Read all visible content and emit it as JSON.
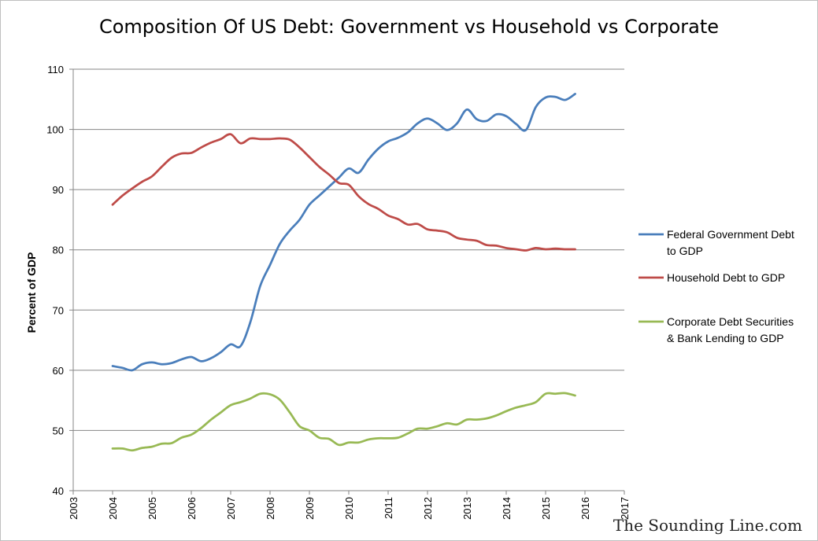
{
  "colors": {
    "federal": "#4a7ebb",
    "household": "#be4b48",
    "corporate": "#98b954",
    "grid": "#868686"
  },
  "watermark": "The Sounding Line.com",
  "chart_data": {
    "type": "line",
    "title": "Composition Of US Debt: Government vs Household vs Corporate",
    "xlabel": "",
    "ylabel": "Percent of GDP",
    "xlim": [
      2003,
      2017
    ],
    "ylim": [
      40,
      110
    ],
    "x_ticks": [
      "2003",
      "2004",
      "2005",
      "2006",
      "2007",
      "2008",
      "2009",
      "2010",
      "2011",
      "2012",
      "2013",
      "2014",
      "2015",
      "2016",
      "2017"
    ],
    "y_ticks": [
      "40",
      "50",
      "60",
      "70",
      "80",
      "90",
      "100",
      "110"
    ],
    "grid": "horizontal",
    "legend_position": "right",
    "series": [
      {
        "name": "Federal Government Debt to GDP",
        "legend_lines": [
          "Federal Government Debt",
          "to GDP"
        ],
        "color": "#4a7ebb",
        "x": [
          2004.0,
          2004.25,
          2004.5,
          2004.75,
          2005.0,
          2005.25,
          2005.5,
          2005.75,
          2006.0,
          2006.25,
          2006.5,
          2006.75,
          2007.0,
          2007.25,
          2007.5,
          2007.75,
          2008.0,
          2008.25,
          2008.5,
          2008.75,
          2009.0,
          2009.25,
          2009.5,
          2009.75,
          2010.0,
          2010.25,
          2010.5,
          2010.75,
          2011.0,
          2011.25,
          2011.5,
          2011.75,
          2012.0,
          2012.25,
          2012.5,
          2012.75,
          2013.0,
          2013.25,
          2013.5,
          2013.75,
          2014.0,
          2014.25,
          2014.5,
          2014.75,
          2015.0,
          2015.25,
          2015.5,
          2015.75
        ],
        "y": [
          60.7,
          60.4,
          60.0,
          61.0,
          61.3,
          61.0,
          61.2,
          61.8,
          62.2,
          61.5,
          62.0,
          63.0,
          64.3,
          64.0,
          68.0,
          74.0,
          77.5,
          81.0,
          83.2,
          85.0,
          87.5,
          89.0,
          90.5,
          92.0,
          93.5,
          92.8,
          95.0,
          96.8,
          98.0,
          98.6,
          99.5,
          101.0,
          101.8,
          101.0,
          99.9,
          101.0,
          103.3,
          101.7,
          101.4,
          102.5,
          102.2,
          100.9,
          99.9,
          103.7,
          105.3,
          105.4,
          104.9,
          105.9
        ]
      },
      {
        "name": "Household Debt to GDP",
        "legend_lines": [
          "Household Debt to GDP"
        ],
        "color": "#be4b48",
        "x": [
          2004.0,
          2004.25,
          2004.5,
          2004.75,
          2005.0,
          2005.25,
          2005.5,
          2005.75,
          2006.0,
          2006.25,
          2006.5,
          2006.75,
          2007.0,
          2007.25,
          2007.5,
          2007.75,
          2008.0,
          2008.25,
          2008.5,
          2008.75,
          2009.0,
          2009.25,
          2009.5,
          2009.75,
          2010.0,
          2010.25,
          2010.5,
          2010.75,
          2011.0,
          2011.25,
          2011.5,
          2011.75,
          2012.0,
          2012.25,
          2012.5,
          2012.75,
          2013.0,
          2013.25,
          2013.5,
          2013.75,
          2014.0,
          2014.25,
          2014.5,
          2014.75,
          2015.0,
          2015.25,
          2015.5,
          2015.75
        ],
        "y": [
          87.5,
          89.0,
          90.2,
          91.3,
          92.2,
          93.8,
          95.3,
          96.0,
          96.1,
          97.0,
          97.8,
          98.4,
          99.2,
          97.7,
          98.5,
          98.4,
          98.4,
          98.5,
          98.3,
          97.0,
          95.4,
          93.8,
          92.5,
          91.1,
          90.8,
          88.9,
          87.6,
          86.8,
          85.7,
          85.1,
          84.2,
          84.3,
          83.4,
          83.2,
          82.9,
          82.0,
          81.7,
          81.5,
          80.8,
          80.7,
          80.3,
          80.1,
          79.9,
          80.3,
          80.1,
          80.2,
          80.1,
          80.1
        ]
      },
      {
        "name": "Corporate Debt Securities & Bank Lending to GDP",
        "legend_lines": [
          "Corporate Debt Securities",
          "& Bank Lending to GDP"
        ],
        "color": "#98b954",
        "x": [
          2004.0,
          2004.25,
          2004.5,
          2004.75,
          2005.0,
          2005.25,
          2005.5,
          2005.75,
          2006.0,
          2006.25,
          2006.5,
          2006.75,
          2007.0,
          2007.25,
          2007.5,
          2007.75,
          2008.0,
          2008.25,
          2008.5,
          2008.75,
          2009.0,
          2009.25,
          2009.5,
          2009.75,
          2010.0,
          2010.25,
          2010.5,
          2010.75,
          2011.0,
          2011.25,
          2011.5,
          2011.75,
          2012.0,
          2012.25,
          2012.5,
          2012.75,
          2013.0,
          2013.25,
          2013.5,
          2013.75,
          2014.0,
          2014.25,
          2014.5,
          2014.75,
          2015.0,
          2015.25,
          2015.5,
          2015.75
        ],
        "y": [
          47.0,
          47.0,
          46.7,
          47.1,
          47.3,
          47.8,
          47.9,
          48.8,
          49.3,
          50.4,
          51.8,
          53.0,
          54.2,
          54.7,
          55.3,
          56.1,
          56.0,
          55.1,
          53.0,
          50.7,
          50.0,
          48.8,
          48.6,
          47.6,
          48.0,
          48.0,
          48.5,
          48.7,
          48.7,
          48.8,
          49.5,
          50.3,
          50.3,
          50.7,
          51.2,
          51.0,
          51.8,
          51.8,
          52.0,
          52.5,
          53.2,
          53.8,
          54.2,
          54.7,
          56.1,
          56.1,
          56.2,
          55.8
        ]
      }
    ]
  }
}
